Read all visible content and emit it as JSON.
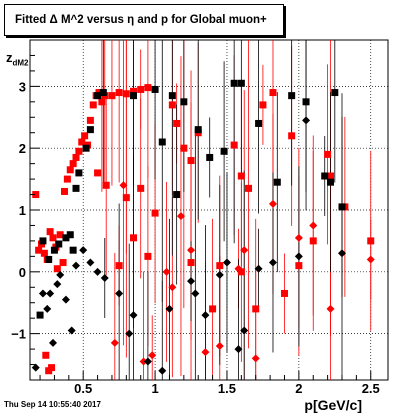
{
  "chart_data": {
    "type": "scatter",
    "title": "Fitted Δ M^2 versus η and p for Global muon+",
    "xlabel": "p[GeV/c]",
    "ylabel": "z",
    "ylabel_sub": "dM2",
    "xlim": [
      0.13,
      2.62
    ],
    "ylim": [
      -1.75,
      3.75
    ],
    "x_ticks": [
      0.5,
      1,
      1.5,
      2,
      2.5
    ],
    "x_tick_labels": [
      "0.5",
      "1",
      "1.5",
      "2",
      "2.5"
    ],
    "y_ticks": [
      -1,
      0,
      1,
      2,
      3
    ],
    "y_tick_labels": [
      "−1",
      "0",
      "1",
      "2",
      "3"
    ],
    "grid": true,
    "legend": "none",
    "series": [
      {
        "color": "#ff0000",
        "marker": "square",
        "points": [
          [
            0.17,
            1.25
          ],
          [
            0.19,
            0.35
          ],
          [
            0.21,
            0.45
          ],
          [
            0.23,
            0.3
          ],
          [
            0.25,
            0.2
          ],
          [
            0.27,
            0.65
          ],
          [
            0.29,
            0.55
          ],
          [
            0.31,
            0.4
          ],
          [
            0.32,
            0.05
          ],
          [
            0.34,
            0.6
          ],
          [
            0.36,
            0.15
          ],
          [
            0.37,
            1.3
          ],
          [
            0.39,
            1.5
          ],
          [
            0.41,
            1.65
          ],
          [
            0.43,
            1.75
          ],
          [
            0.45,
            1.85
          ],
          [
            0.47,
            1.95
          ],
          [
            0.49,
            2.1
          ],
          [
            0.51,
            2.2
          ],
          [
            0.53,
            2.05
          ],
          [
            0.55,
            2.45
          ],
          [
            0.57,
            2.7
          ],
          [
            0.59,
            2.85
          ],
          [
            0.61,
            2.9
          ],
          [
            0.63,
            2.75
          ],
          [
            0.65,
            2.85
          ],
          [
            0.7,
            2.85
          ],
          [
            0.75,
            2.9
          ],
          [
            0.8,
            2.88
          ],
          [
            0.85,
            2.92
          ],
          [
            0.9,
            2.95
          ],
          [
            0.95,
            2.98
          ],
          [
            0.28,
            -1.55
          ],
          [
            0.26,
            -1.6
          ],
          [
            0.24,
            -1.35
          ],
          [
            0.6,
            1.6
          ],
          [
            0.66,
            1.4
          ],
          [
            0.8,
            1.2
          ],
          [
            0.85,
            0.55
          ],
          [
            0.9,
            1.35
          ],
          [
            1.12,
            2.7
          ],
          [
            1.15,
            2.4
          ],
          [
            1.2,
            2.0
          ],
          [
            1.25,
            1.8
          ],
          [
            1.3,
            2.25
          ],
          [
            1.55,
            2.05
          ],
          [
            1.6,
            1.55
          ],
          [
            1.65,
            1.35
          ],
          [
            1.75,
            2.7
          ],
          [
            1.82,
            2.9
          ],
          [
            1.95,
            2.2
          ],
          [
            2.2,
            1.9
          ],
          [
            2.22,
            1.55
          ],
          [
            2.32,
            1.05
          ],
          [
            2.5,
            0.5
          ],
          [
            0.75,
            0.1
          ],
          [
            0.95,
            0.25
          ],
          [
            1.25,
            0.15
          ],
          [
            1.4,
            -0.6
          ],
          [
            1.6,
            0.0
          ],
          [
            1.45,
            0.1
          ],
          [
            1.7,
            -0.6
          ],
          [
            1.9,
            -0.35
          ],
          [
            2.0,
            0.1
          ],
          [
            2.1,
            0.5
          ],
          [
            1.0,
            0.95
          ]
        ]
      },
      {
        "color": "#ff0000",
        "marker": "diamond",
        "points": [
          [
            0.72,
            -1.15
          ],
          [
            0.78,
            1.4
          ],
          [
            0.92,
            -1.45
          ],
          [
            0.98,
            -1.35
          ],
          [
            1.08,
            0.0
          ],
          [
            1.12,
            -0.25
          ],
          [
            1.18,
            0.9
          ],
          [
            1.25,
            0.35
          ],
          [
            1.35,
            -1.3
          ],
          [
            1.45,
            -1.2
          ],
          [
            1.58,
            0.05
          ],
          [
            1.62,
            0.35
          ],
          [
            1.7,
            -1.4
          ],
          [
            1.82,
            1.1
          ],
          [
            2.0,
            0.55
          ],
          [
            2.1,
            0.75
          ],
          [
            2.22,
            -0.6
          ],
          [
            2.5,
            0.2
          ]
        ]
      },
      {
        "color": "#000000",
        "marker": "square",
        "points": [
          [
            0.2,
            -0.7
          ],
          [
            0.22,
            0.5
          ],
          [
            0.26,
            0.2
          ],
          [
            0.3,
            0.35
          ],
          [
            0.33,
            0.45
          ],
          [
            0.38,
            0.55
          ],
          [
            0.41,
            0.6
          ],
          [
            0.43,
            0.35
          ],
          [
            0.45,
            1.35
          ],
          [
            0.47,
            1.6
          ],
          [
            0.52,
            2.0
          ],
          [
            0.55,
            2.3
          ],
          [
            0.6,
            2.85
          ],
          [
            0.64,
            2.9
          ],
          [
            0.85,
            2.85
          ],
          [
            1.0,
            2.95
          ],
          [
            1.12,
            2.85
          ],
          [
            1.2,
            2.75
          ],
          [
            1.3,
            2.3
          ],
          [
            1.38,
            1.85
          ],
          [
            1.48,
            1.95
          ],
          [
            1.55,
            3.05
          ],
          [
            1.6,
            3.05
          ],
          [
            1.72,
            2.4
          ],
          [
            1.85,
            1.45
          ],
          [
            2.05,
            2.75
          ],
          [
            2.18,
            1.55
          ],
          [
            2.22,
            1.45
          ],
          [
            2.25,
            2.9
          ],
          [
            2.3,
            1.05
          ],
          [
            1.95,
            2.85
          ],
          [
            1.05,
            2.1
          ],
          [
            1.15,
            1.25
          ]
        ]
      },
      {
        "color": "#000000",
        "marker": "diamond",
        "points": [
          [
            0.17,
            -1.55
          ],
          [
            0.22,
            -0.35
          ],
          [
            0.25,
            -0.6
          ],
          [
            0.27,
            -0.35
          ],
          [
            0.29,
            -1.15
          ],
          [
            0.32,
            -0.2
          ],
          [
            0.34,
            -0.05
          ],
          [
            0.38,
            -0.45
          ],
          [
            0.42,
            -0.95
          ],
          [
            0.45,
            0.1
          ],
          [
            0.5,
            0.35
          ],
          [
            0.55,
            0.15
          ],
          [
            0.6,
            0.0
          ],
          [
            0.65,
            -0.1
          ],
          [
            0.75,
            -0.35
          ],
          [
            0.82,
            -1.0
          ],
          [
            0.85,
            -0.7
          ],
          [
            0.95,
            -1.45
          ],
          [
            1.05,
            -1.6
          ],
          [
            1.1,
            -0.6
          ],
          [
            1.25,
            -0.15
          ],
          [
            1.28,
            -0.35
          ],
          [
            1.35,
            -0.7
          ],
          [
            1.45,
            -0.05
          ],
          [
            1.5,
            0.15
          ],
          [
            1.58,
            -1.25
          ],
          [
            1.62,
            -0.95
          ],
          [
            1.72,
            0.05
          ],
          [
            1.82,
            0.15
          ],
          [
            2.0,
            0.25
          ],
          [
            2.05,
            2.45
          ],
          [
            2.3,
            0.3
          ]
        ]
      }
    ]
  },
  "footer": {
    "timestamp": "Thu Sep 14 10:55:40 2017"
  }
}
